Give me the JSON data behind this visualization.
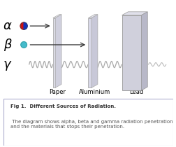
{
  "background_color": "#ffffff",
  "caption_bold": "Fig 1.  Different Sources of Radiation.",
  "caption_normal": " The diagram shows alpha, beta and gamma radiation penetration and the materials that stops their penetration.",
  "labels_alpha": "α",
  "labels_beta": "β",
  "labels_gamma": "γ",
  "material_labels": [
    "Paper",
    "Aluminium",
    "Lead"
  ],
  "alpha_red": "#cc1111",
  "alpha_blue": "#1133bb",
  "beta_color": "#44bbcc",
  "arrow_color": "#333333",
  "wave_color": "#aaaaaa",
  "text_color": "#555555",
  "caption_text_color": "#555555",
  "border_color": "#aaaacc"
}
